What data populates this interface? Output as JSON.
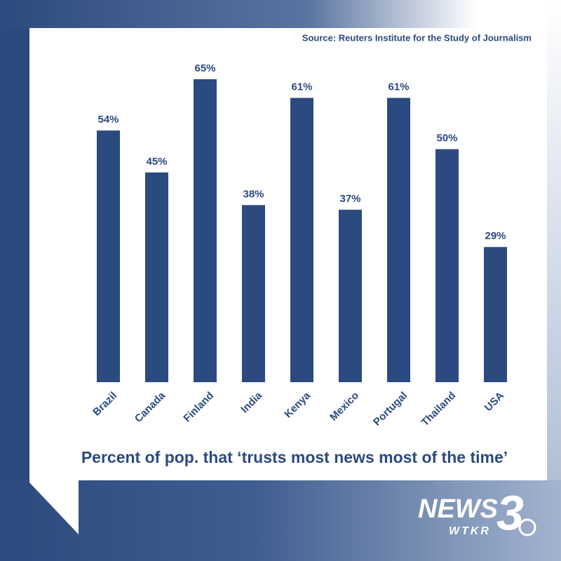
{
  "chart_data": {
    "type": "bar",
    "source": "Source: Reuters Institute for the Study of Journalism",
    "title": "Percent of pop. that ‘trusts most news most of the time’",
    "categories": [
      "Brazil",
      "Canada",
      "Finland",
      "India",
      "Kenya",
      "Mexico",
      "Portugal",
      "Thailand",
      "USA"
    ],
    "values": [
      54,
      45,
      65,
      38,
      61,
      37,
      61,
      50,
      29
    ],
    "value_labels": [
      "54%",
      "45%",
      "65%",
      "38%",
      "61%",
      "37%",
      "61%",
      "50%",
      "29%"
    ],
    "color": "#2b4a80"
  },
  "logo": {
    "name": "NEWS",
    "number": "3",
    "call_sign": "WTKR"
  }
}
